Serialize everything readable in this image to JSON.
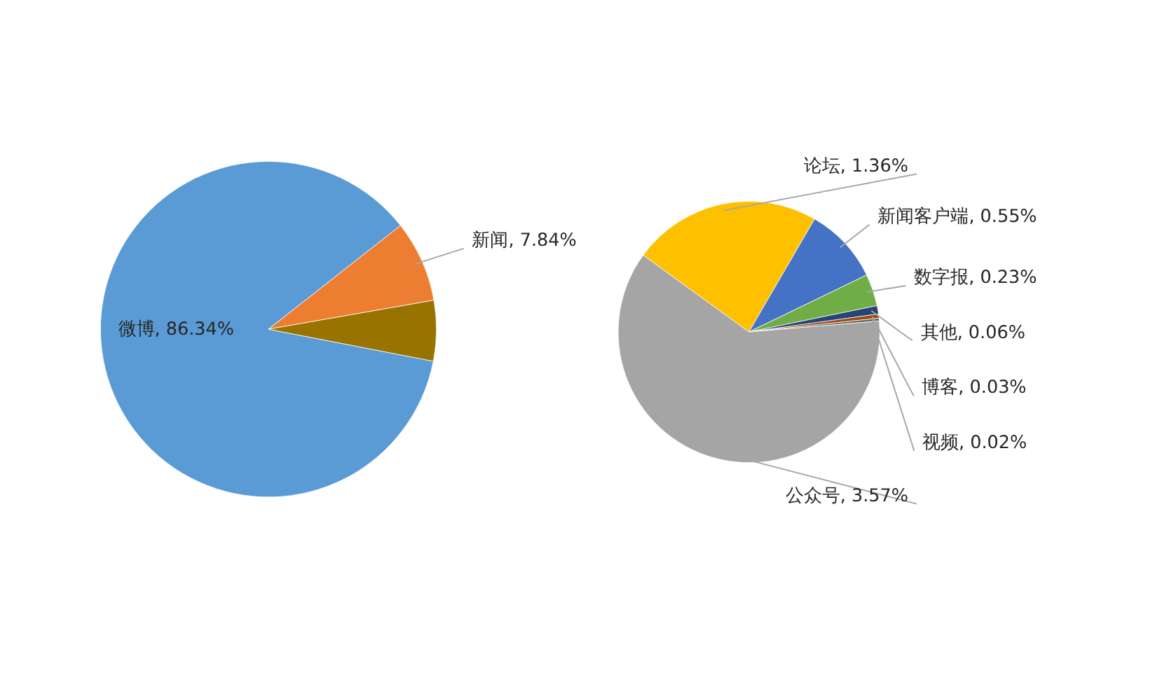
{
  "chart_data": [
    {
      "type": "pie",
      "categories": [
        "微博",
        "新闻",
        null
      ],
      "values": [
        86.34,
        7.84,
        5.82
      ],
      "colors": [
        "#5b9bd5",
        "#ed7d31",
        "#997300"
      ],
      "value_labels": [
        "86.34%",
        "7.84%",
        null
      ]
    },
    {
      "type": "pie",
      "categories": [
        "论坛",
        "新闻客户端",
        "数字报",
        "其他",
        "博客",
        "视频",
        "公众号"
      ],
      "values": [
        1.36,
        0.55,
        0.23,
        0.06,
        0.03,
        0.02,
        3.57
      ],
      "colors": [
        "#ffc000",
        "#4472c4",
        "#70ad47",
        "#264478",
        "#9e480e",
        "#636363",
        "#a5a5a5"
      ],
      "value_labels": [
        "1.36%",
        "0.55%",
        "0.23%",
        "0.06%",
        "0.03%",
        "0.02%",
        "3.57%"
      ]
    }
  ]
}
